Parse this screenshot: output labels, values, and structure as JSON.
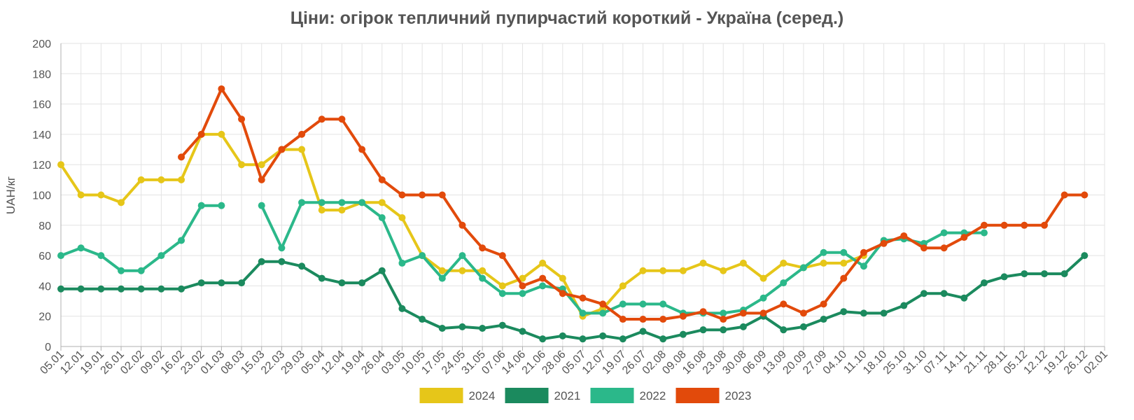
{
  "chart_data": {
    "type": "line",
    "title": "Ціни: огірок тепличний пупирчастий короткий - Україна (серед.)",
    "xlabel": "",
    "ylabel": "UAH/кг",
    "ylim": [
      0,
      200
    ],
    "yticks": [
      0,
      20,
      40,
      60,
      80,
      100,
      120,
      140,
      160,
      180,
      200
    ],
    "grid": true,
    "legend_position": "bottom",
    "categories": [
      "05.01",
      "12.01",
      "19.01",
      "26.01",
      "02.02",
      "09.02",
      "16.02",
      "23.02",
      "01.03",
      "08.03",
      "15.03",
      "22.03",
      "29.03",
      "05.04",
      "12.04",
      "19.04",
      "26.04",
      "03.05",
      "10.05",
      "17.05",
      "24.05",
      "31.05",
      "07.06",
      "14.06",
      "21.06",
      "28.06",
      "05.07",
      "12.07",
      "19.07",
      "26.07",
      "02.08",
      "09.08",
      "16.08",
      "23.08",
      "30.08",
      "06.09",
      "13.09",
      "20.09",
      "27.09",
      "04.10",
      "11.10",
      "18.10",
      "25.10",
      "31.10",
      "07.11",
      "14.11",
      "21.11",
      "28.11",
      "05.12",
      "12.12",
      "19.12",
      "26.12",
      "02.01"
    ],
    "series": [
      {
        "name": "2024",
        "color": "#e6c619",
        "values": [
          120,
          100,
          100,
          95,
          110,
          110,
          110,
          140,
          140,
          120,
          120,
          130,
          130,
          90,
          90,
          95,
          95,
          85,
          60,
          50,
          50,
          50,
          40,
          45,
          55,
          45,
          20,
          25,
          40,
          50,
          50,
          50,
          55,
          50,
          55,
          45,
          55,
          52,
          55,
          55,
          60,
          null,
          null,
          null,
          null,
          null,
          null,
          null,
          null,
          null,
          null,
          null,
          null
        ]
      },
      {
        "name": "2021",
        "color": "#1b8a5e",
        "values": [
          38,
          38,
          38,
          38,
          38,
          38,
          38,
          42,
          42,
          42,
          56,
          56,
          53,
          45,
          42,
          42,
          50,
          25,
          18,
          12,
          13,
          12,
          14,
          10,
          5,
          7,
          5,
          7,
          5,
          10,
          5,
          8,
          11,
          11,
          13,
          20,
          11,
          13,
          18,
          23,
          22,
          22,
          27,
          35,
          35,
          32,
          42,
          46,
          48,
          48,
          48,
          60,
          null
        ]
      },
      {
        "name": "2022",
        "color": "#2bb88a",
        "values": [
          60,
          65,
          60,
          50,
          50,
          60,
          70,
          93,
          93,
          null,
          93,
          65,
          95,
          95,
          95,
          95,
          85,
          55,
          60,
          45,
          60,
          45,
          35,
          35,
          40,
          38,
          22,
          22,
          28,
          28,
          28,
          22,
          22,
          22,
          24,
          32,
          42,
          52,
          62,
          62,
          53,
          70,
          71,
          68,
          75,
          75,
          75,
          null,
          null,
          null,
          null,
          null,
          null
        ]
      },
      {
        "name": "2023",
        "color": "#e24a0b",
        "values": [
          null,
          null,
          null,
          null,
          null,
          null,
          125,
          140,
          170,
          150,
          110,
          130,
          140,
          150,
          150,
          130,
          110,
          100,
          100,
          100,
          80,
          65,
          60,
          40,
          45,
          35,
          32,
          28,
          18,
          18,
          18,
          20,
          23,
          18,
          22,
          22,
          28,
          22,
          28,
          45,
          62,
          68,
          73,
          65,
          65,
          72,
          80,
          80,
          80,
          80,
          100,
          100,
          null
        ]
      }
    ],
    "legend_order": [
      "2024",
      "2021",
      "2022",
      "2023"
    ]
  }
}
